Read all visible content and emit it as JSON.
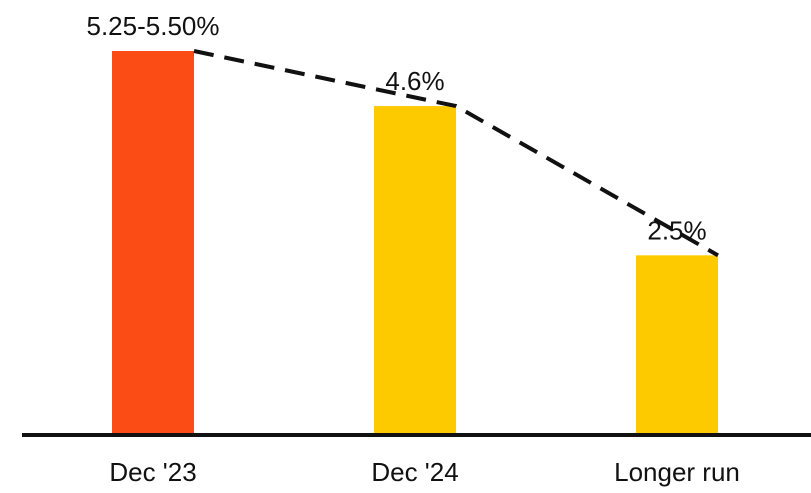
{
  "chart_data": {
    "type": "bar",
    "categories": [
      "Dec '23",
      "Dec '24",
      "Longer run"
    ],
    "values": [
      5.375,
      4.6,
      2.5
    ],
    "data_labels": [
      "5.25-5.50%",
      "4.6%",
      "2.5%"
    ],
    "bar_colors": [
      "#fc4c16",
      "#fdca00",
      "#fdca00"
    ],
    "ylim": [
      0,
      5.375
    ],
    "grid": false,
    "trend_line": "dashed",
    "title": "",
    "xlabel": "",
    "ylabel": ""
  }
}
